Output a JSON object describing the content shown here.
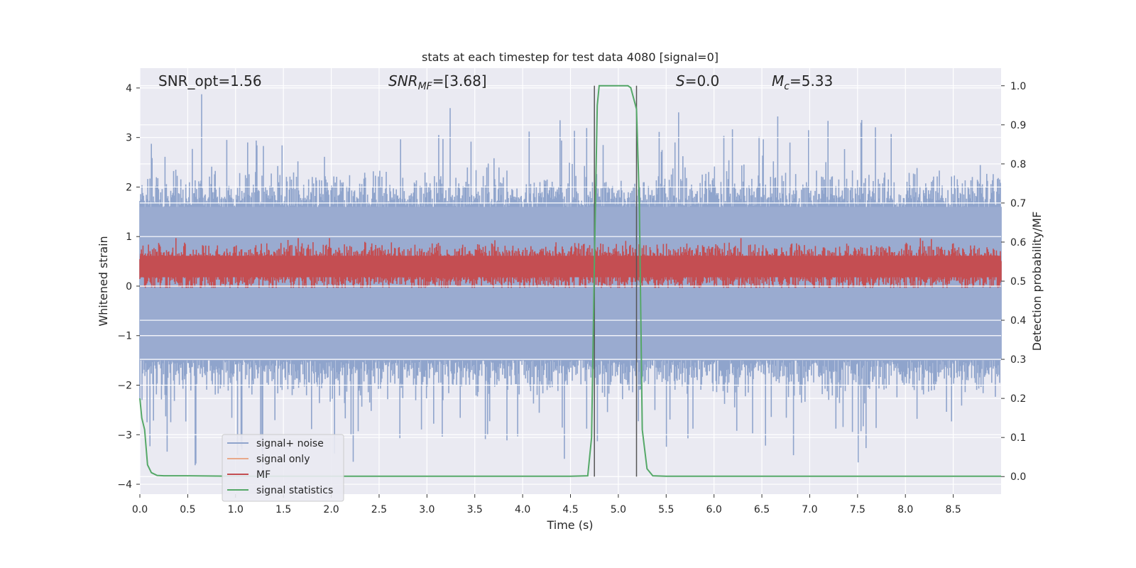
{
  "chart_data": {
    "type": "line",
    "title": "stats at each timestep for test data 4080 [signal=0]",
    "xlabel": "Time (s)",
    "ylabel": "Whitened strain",
    "y2label": "Detection probability/MF",
    "xlim": [
      0,
      9.0
    ],
    "ylim": [
      -4.2,
      4.4
    ],
    "y2lim": [
      -0.045,
      1.045
    ],
    "xticks": [
      "0.0",
      "0.5",
      "1.0",
      "1.5",
      "2.0",
      "2.5",
      "3.0",
      "3.5",
      "4.0",
      "4.5",
      "5.0",
      "5.5",
      "6.0",
      "6.5",
      "7.0",
      "7.5",
      "8.0",
      "8.5"
    ],
    "yticks": [
      "4",
      "3",
      "2",
      "1",
      "0",
      "−1",
      "−2",
      "−3",
      "−4"
    ],
    "y2ticks": [
      "1.0",
      "0.9",
      "0.8",
      "0.7",
      "0.6",
      "0.5",
      "0.4",
      "0.3",
      "0.2",
      "0.1",
      "0.0"
    ],
    "grid": true,
    "legend_position": "lower-left",
    "annotations": [
      {
        "text": "SNR_opt=1.56"
      },
      {
        "text": "SNR_MF=[3.68]"
      },
      {
        "text": "S=0.0"
      },
      {
        "text": "M_c=5.33"
      }
    ],
    "detection_window": [
      4.75,
      5.19
    ],
    "series": [
      {
        "name": "signal+ noise",
        "color": "#8fa4cc",
        "description": "whitened noise, amplitude roughly -3.7 to 4.0"
      },
      {
        "name": "signal only",
        "color": "#e8a88a",
        "values_flat": 0.0
      },
      {
        "name": "MF",
        "color": "#c44e52",
        "description": "matched filter output, range about 0.48 to 0.61 on right axis"
      },
      {
        "name": "signal statistics",
        "color": "#55a868",
        "x": [
          0.0,
          0.02,
          0.05,
          0.08,
          0.12,
          0.18,
          0.25,
          0.5,
          1.0,
          2.0,
          3.0,
          4.0,
          4.5,
          4.68,
          4.72,
          4.75,
          4.78,
          4.8,
          4.83,
          5.0,
          5.1,
          5.13,
          5.19,
          5.22,
          5.25,
          5.3,
          5.36,
          5.5,
          6.0,
          7.0,
          8.0,
          9.0
        ],
        "y": [
          0.2,
          0.15,
          0.12,
          0.03,
          0.01,
          0.003,
          0.002,
          0.002,
          0.001,
          0.001,
          0.001,
          0.001,
          0.001,
          0.002,
          0.1,
          0.55,
          0.95,
          1.0,
          1.0,
          1.0,
          1.0,
          0.995,
          0.94,
          0.7,
          0.12,
          0.02,
          0.002,
          0.001,
          0.001,
          0.001,
          0.001,
          0.001
        ]
      }
    ]
  }
}
